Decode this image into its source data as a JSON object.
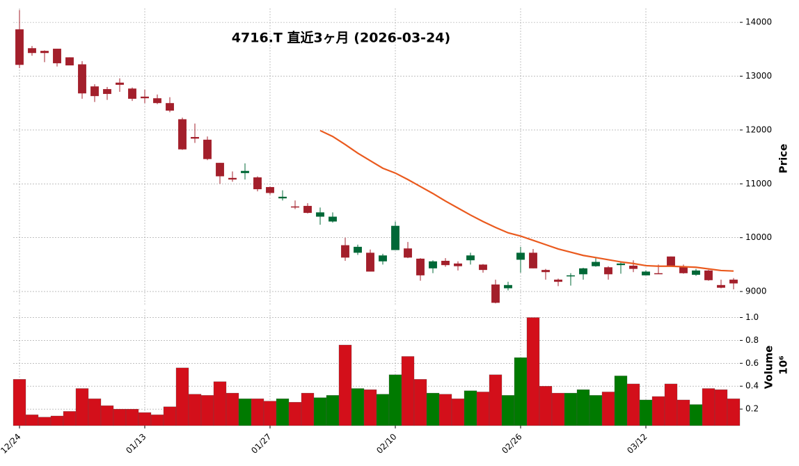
{
  "chart_data": {
    "type": "candlestick",
    "title": "4716.T 直近3ヶ月 (2026-03-24)",
    "ylabel": "Price",
    "grid": true,
    "up_color": "#006837",
    "down_color": "#a31f2b",
    "categories": [
      "12/24",
      null,
      null,
      null,
      null,
      null,
      null,
      null,
      null,
      null,
      "01/13",
      null,
      null,
      null,
      null,
      null,
      null,
      null,
      null,
      null,
      "01/27",
      null,
      null,
      null,
      null,
      null,
      null,
      null,
      null,
      null,
      "02/10",
      null,
      null,
      null,
      null,
      null,
      null,
      null,
      null,
      null,
      "02/26",
      null,
      null,
      null,
      null,
      null,
      null,
      null,
      null,
      null,
      "03/12",
      null,
      null,
      null,
      null,
      null,
      null,
      null
    ],
    "open": [
      13870,
      13520,
      13470,
      13510,
      13350,
      13220,
      12810,
      12760,
      12880,
      12770,
      12620,
      12590,
      12500,
      12200,
      11870,
      11820,
      11390,
      11110,
      11200,
      11120,
      10940,
      10730,
      10580,
      10590,
      10390,
      10300,
      9860,
      9720,
      9720,
      9560,
      9770,
      9800,
      9610,
      9430,
      9570,
      9520,
      9580,
      9500,
      9130,
      9060,
      9590,
      9720,
      9400,
      9220,
      9290,
      9320,
      9470,
      9450,
      9490,
      9480,
      9300,
      9340,
      9650,
      9460,
      9310,
      9390,
      9120,
      9220
    ],
    "high": [
      14230,
      13560,
      13480,
      13510,
      13350,
      13280,
      12850,
      12800,
      12960,
      12790,
      12750,
      12660,
      12610,
      12230,
      12120,
      11880,
      11390,
      11230,
      11380,
      11140,
      10950,
      10880,
      10690,
      10640,
      10560,
      10470,
      10000,
      9870,
      9780,
      9700,
      10300,
      9920,
      9620,
      9580,
      9620,
      9560,
      9720,
      9510,
      9220,
      9180,
      9830,
      9790,
      9420,
      9240,
      9340,
      9440,
      9620,
      9470,
      9560,
      9580,
      9390,
      9500,
      9650,
      9500,
      9420,
      9400,
      9220,
      9250
    ],
    "low": [
      13150,
      13380,
      13260,
      13180,
      13200,
      12580,
      12520,
      12560,
      12710,
      12540,
      12500,
      12480,
      12330,
      11630,
      11760,
      11440,
      11000,
      11040,
      11080,
      10860,
      10800,
      10690,
      10530,
      10450,
      10240,
      10280,
      9570,
      9680,
      9370,
      9500,
      9770,
      9620,
      9200,
      9340,
      9460,
      9390,
      9500,
      9350,
      8780,
      9020,
      9350,
      9430,
      9220,
      9100,
      9110,
      9220,
      9460,
      9220,
      9330,
      9360,
      9300,
      9330,
      9460,
      9330,
      9290,
      9200,
      9060,
      9040
    ],
    "close": [
      13210,
      13430,
      13430,
      13240,
      13200,
      12680,
      12630,
      12670,
      12840,
      12580,
      12590,
      12500,
      12360,
      11640,
      11840,
      11460,
      11140,
      11080,
      11240,
      10900,
      10830,
      10760,
      10570,
      10460,
      10470,
      10390,
      9630,
      9830,
      9370,
      9670,
      10220,
      9630,
      9300,
      9560,
      9490,
      9470,
      9670,
      9400,
      8790,
      9120,
      9720,
      9430,
      9360,
      9180,
      9300,
      9430,
      9550,
      9320,
      9520,
      9420,
      9370,
      9330,
      9470,
      9340,
      9390,
      9210,
      9070,
      9150
    ],
    "ylim": [
      8730,
      14260
    ],
    "yticks": [
      9000,
      10000,
      11000,
      12000,
      13000,
      14000
    ],
    "ma": {
      "color": "#ea5a1e",
      "values": [
        null,
        null,
        null,
        null,
        null,
        null,
        null,
        null,
        null,
        null,
        null,
        null,
        null,
        null,
        null,
        null,
        null,
        null,
        null,
        null,
        null,
        null,
        null,
        null,
        11990,
        11880,
        11730,
        11570,
        11430,
        11290,
        11200,
        11080,
        10950,
        10820,
        10680,
        10550,
        10420,
        10300,
        10190,
        10090,
        10030,
        9950,
        9870,
        9790,
        9730,
        9670,
        9630,
        9590,
        9550,
        9520,
        9480,
        9470,
        9470,
        9460,
        9450,
        9420,
        9390,
        9380
      ]
    },
    "volume": {
      "label": "Volume",
      "scale_label": "10⁶",
      "up_color": "#007a00",
      "down_color": "#d30f1a",
      "values": [
        0.46,
        0.15,
        0.13,
        0.14,
        0.18,
        0.38,
        0.29,
        0.23,
        0.2,
        0.2,
        0.17,
        0.15,
        0.22,
        0.56,
        0.33,
        0.32,
        0.44,
        0.34,
        0.29,
        0.29,
        0.27,
        0.29,
        0.26,
        0.34,
        0.3,
        0.32,
        0.76,
        0.38,
        0.37,
        0.33,
        0.5,
        0.66,
        0.46,
        0.34,
        0.33,
        0.29,
        0.36,
        0.35,
        0.5,
        0.32,
        0.65,
        1.0,
        0.4,
        0.34,
        0.34,
        0.37,
        0.32,
        0.35,
        0.49,
        0.42,
        0.28,
        0.31,
        0.42,
        0.28,
        0.24,
        0.38,
        0.37,
        0.29
      ],
      "ylim": [
        0.055,
        1.07
      ],
      "yticks": [
        0.2,
        0.4,
        0.6,
        0.8,
        {
          "value": 1,
          "label": "1.0"
        }
      ]
    }
  }
}
